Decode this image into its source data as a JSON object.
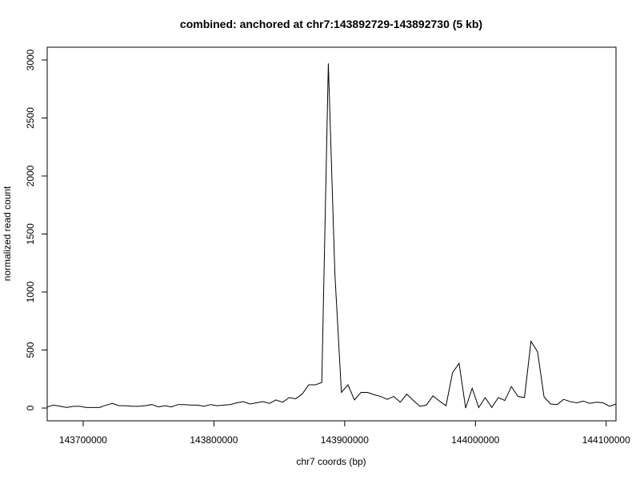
{
  "chart_data": {
    "type": "line",
    "title": "combined: anchored at chr7:143892729-143892730 (5 kb)",
    "xlabel": "chr7 coords (bp)",
    "ylabel": "normalized read count",
    "xlim": [
      143672500,
      144107500
    ],
    "ylim": [
      -110,
      3110
    ],
    "x_ticks": [
      143700000,
      143800000,
      143900000,
      144000000,
      144100000
    ],
    "x_tick_labels": [
      "143700000",
      "143800000",
      "143900000",
      "144000000",
      "144100000"
    ],
    "y_ticks": [
      0,
      500,
      1000,
      1500,
      2000,
      2500,
      3000
    ],
    "y_tick_labels": [
      "0",
      "500",
      "1000",
      "1500",
      "2000",
      "2500",
      "3000"
    ],
    "grid": false,
    "line_color": "#000000",
    "series": [
      {
        "x": [
          143672500,
          143677500,
          143682500,
          143687500,
          143692500,
          143697500,
          143702500,
          143707500,
          143712500,
          143717500,
          143722500,
          143727500,
          143732500,
          143737500,
          143742500,
          143747500,
          143752500,
          143757500,
          143762500,
          143767500,
          143772500,
          143777500,
          143782500,
          143787500,
          143792500,
          143797500,
          143802500,
          143807500,
          143812500,
          143817500,
          143822500,
          143827500,
          143832500,
          143837500,
          143842500,
          143847500,
          143852500,
          143857500,
          143862500,
          143867500,
          143872500,
          143877500,
          143882500,
          143887500,
          143892500,
          143897500,
          143902500,
          143907500,
          143912500,
          143917500,
          143922500,
          143927500,
          143932500,
          143937500,
          143942500,
          143947500,
          143952500,
          143957500,
          143962500,
          143967500,
          143972500,
          143977500,
          143982500,
          143987500,
          143992500,
          143997500,
          144002500,
          144007500,
          144012500,
          144017500,
          144022500,
          144027500,
          144032500,
          144037500,
          144042500,
          144047500,
          144052500,
          144057500,
          144062500,
          144067500,
          144072500,
          144077500,
          144082500,
          144087500,
          144092500,
          144097500,
          144102500,
          144107500
        ],
        "values": [
          10,
          25,
          15,
          5,
          15,
          15,
          5,
          5,
          5,
          25,
          40,
          20,
          20,
          15,
          15,
          20,
          30,
          10,
          20,
          10,
          30,
          30,
          25,
          25,
          15,
          30,
          20,
          25,
          30,
          45,
          55,
          35,
          45,
          55,
          40,
          70,
          50,
          90,
          80,
          120,
          200,
          200,
          220,
          2970,
          1160,
          135,
          200,
          70,
          135,
          135,
          115,
          100,
          75,
          100,
          50,
          120,
          65,
          15,
          25,
          105,
          60,
          20,
          305,
          385,
          0,
          170,
          5,
          90,
          5,
          90,
          65,
          185,
          100,
          90,
          575,
          485,
          95,
          35,
          30,
          75,
          55,
          45,
          60,
          40,
          50,
          45,
          15,
          35
        ]
      }
    ]
  }
}
